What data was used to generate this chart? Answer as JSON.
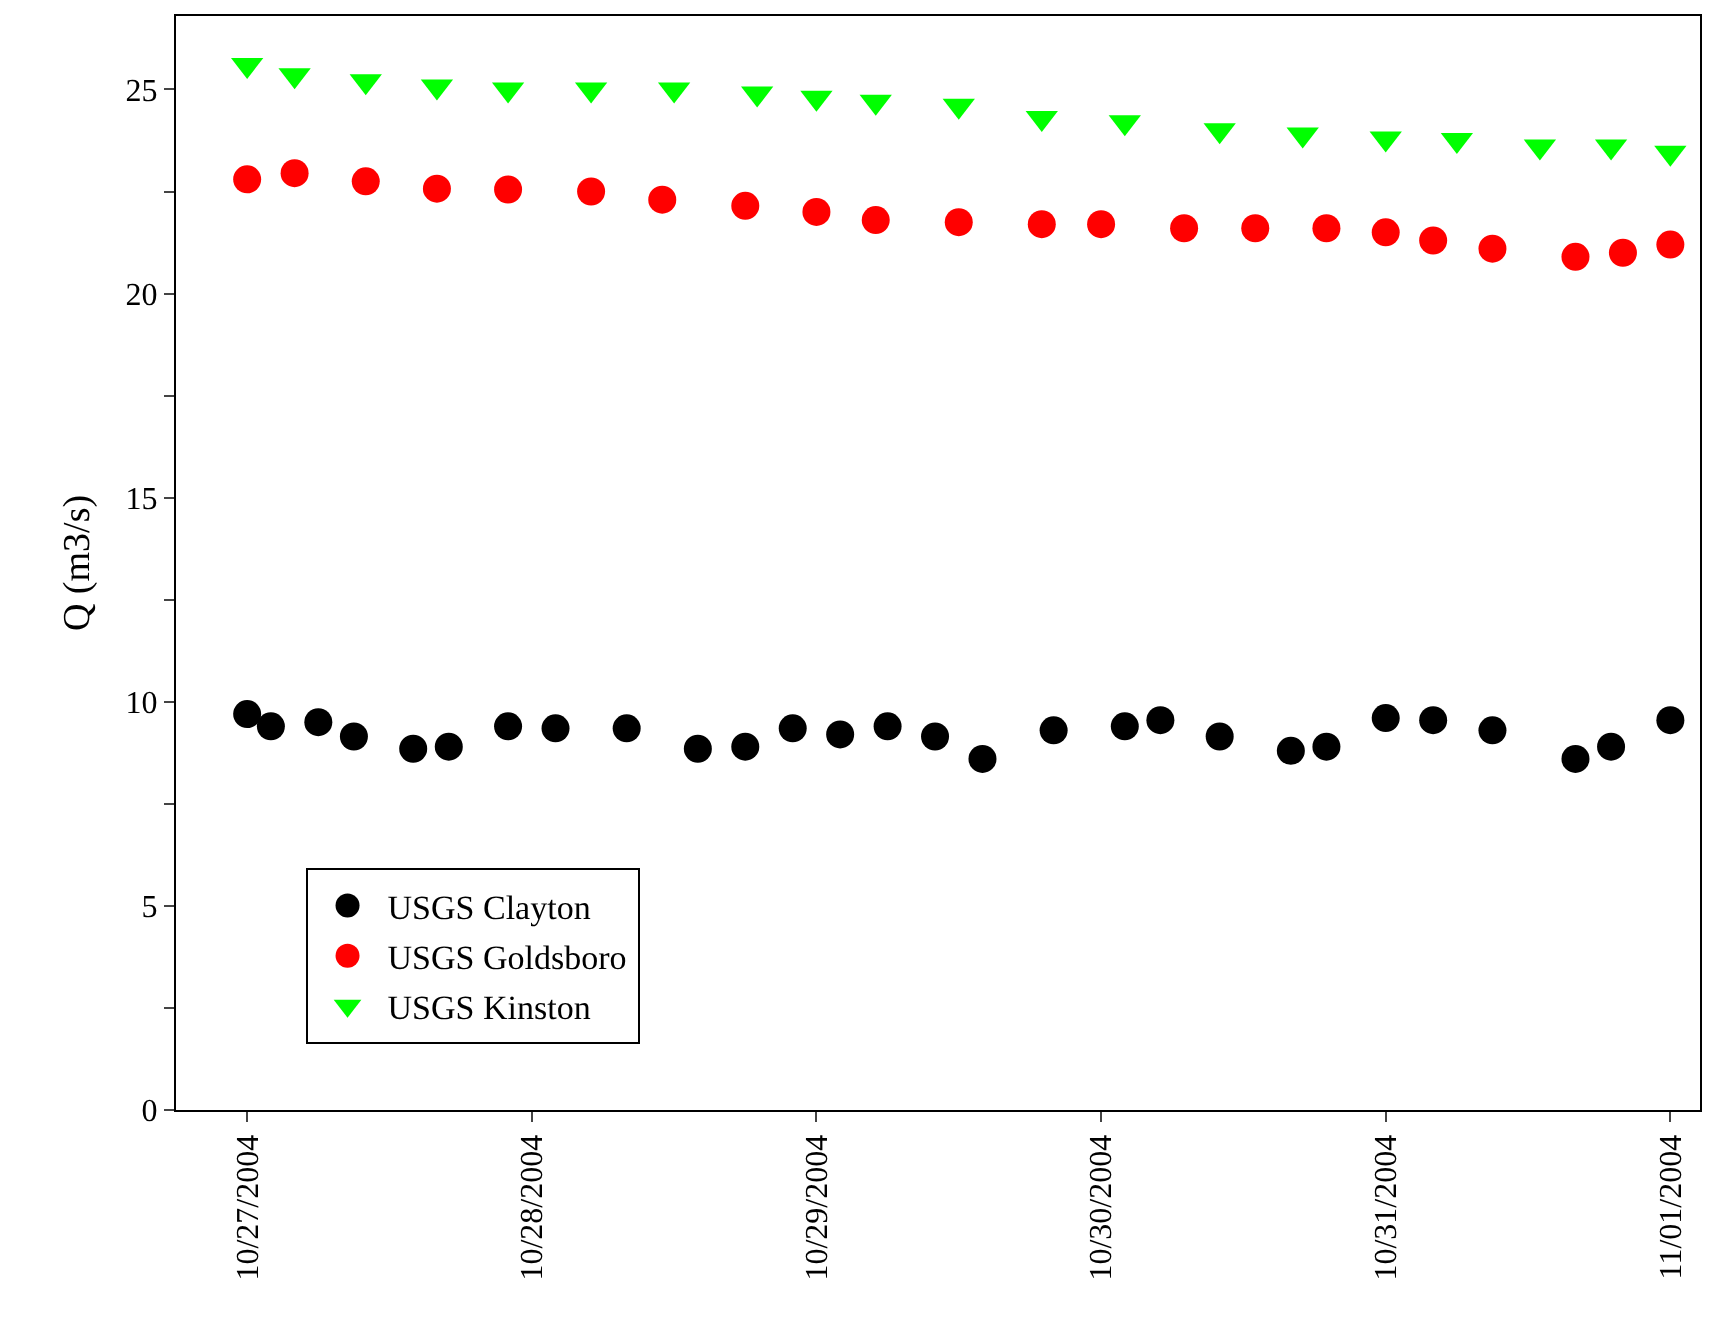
{
  "chart_data": {
    "type": "scatter",
    "ylabel": "Q (m3/s)",
    "xlim": [
      "2004-10-26T18:00",
      "2004-11-01T02:30"
    ],
    "xticks": [
      {
        "value": "2004-10-27",
        "label": "10/27/2004"
      },
      {
        "value": "2004-10-28",
        "label": "10/28/2004"
      },
      {
        "value": "2004-10-29",
        "label": "10/29/2004"
      },
      {
        "value": "2004-10-30",
        "label": "10/30/2004"
      },
      {
        "value": "2004-10-31",
        "label": "10/31/2004"
      },
      {
        "value": "2004-11-01",
        "label": "11/01/2004"
      }
    ],
    "ylim": [
      0,
      26.8
    ],
    "yticks": [
      0,
      {
        "value": 2.5,
        "label": null
      },
      5,
      {
        "value": 7.5,
        "label": null
      },
      10,
      {
        "value": 12.5,
        "label": null
      },
      15,
      {
        "value": 17.5,
        "label": null
      },
      20,
      {
        "value": 22.5,
        "label": null
      },
      25
    ],
    "legend": "bottom left",
    "series": [
      {
        "name": "USGS Clayton",
        "color": "#000000",
        "marker": "circle",
        "x": [
          "2004-10-27T00:00",
          "2004-10-27T02:00",
          "2004-10-27T06:00",
          "2004-10-27T09:00",
          "2004-10-27T14:00",
          "2004-10-27T17:00",
          "2004-10-27T22:00",
          "2004-10-28T02:00",
          "2004-10-28T08:00",
          "2004-10-28T14:00",
          "2004-10-28T18:00",
          "2004-10-28T22:00",
          "2004-10-29T02:00",
          "2004-10-29T06:00",
          "2004-10-29T10:00",
          "2004-10-29T14:00",
          "2004-10-29T20:00",
          "2004-10-30T02:00",
          "2004-10-30T05:00",
          "2004-10-30T10:00",
          "2004-10-30T16:00",
          "2004-10-30T19:00",
          "2004-10-31T00:00",
          "2004-10-31T04:00",
          "2004-10-31T09:00",
          "2004-10-31T16:00",
          "2004-10-31T19:00",
          "2004-11-01T00:00"
        ],
        "values": [
          9.7,
          9.4,
          9.5,
          9.15,
          8.85,
          8.9,
          9.4,
          9.35,
          9.35,
          8.85,
          8.9,
          9.35,
          9.2,
          9.4,
          9.15,
          8.6,
          9.3,
          9.4,
          9.55,
          9.15,
          8.8,
          8.9,
          9.6,
          9.55,
          9.3,
          8.6,
          8.9,
          9.55
        ]
      },
      {
        "name": "USGS Goldsboro",
        "color": "#ff0000",
        "marker": "circle",
        "x": [
          "2004-10-27T00:00",
          "2004-10-27T04:00",
          "2004-10-27T10:00",
          "2004-10-27T16:00",
          "2004-10-27T22:00",
          "2004-10-28T05:00",
          "2004-10-28T11:00",
          "2004-10-28T18:00",
          "2004-10-29T00:00",
          "2004-10-29T05:00",
          "2004-10-29T12:00",
          "2004-10-29T19:00",
          "2004-10-30T00:00",
          "2004-10-30T07:00",
          "2004-10-30T13:00",
          "2004-10-30T19:00",
          "2004-10-31T00:00",
          "2004-10-31T04:00",
          "2004-10-31T09:00",
          "2004-10-31T16:00",
          "2004-10-31T20:00",
          "2004-11-01T00:00"
        ],
        "values": [
          22.8,
          22.95,
          22.75,
          22.57,
          22.55,
          22.5,
          22.3,
          22.15,
          22.0,
          21.8,
          21.75,
          21.7,
          21.7,
          21.6,
          21.6,
          21.6,
          21.5,
          21.3,
          21.1,
          20.9,
          21.0,
          21.2
        ]
      },
      {
        "name": "USGS Kinston",
        "color": "#00ff00",
        "marker": "triangle",
        "x": [
          "2004-10-27T00:00",
          "2004-10-27T04:00",
          "2004-10-27T10:00",
          "2004-10-27T16:00",
          "2004-10-27T22:00",
          "2004-10-28T05:00",
          "2004-10-28T12:00",
          "2004-10-28T19:00",
          "2004-10-29T00:00",
          "2004-10-29T05:00",
          "2004-10-29T12:00",
          "2004-10-29T19:00",
          "2004-10-30T02:00",
          "2004-10-30T10:00",
          "2004-10-30T17:00",
          "2004-10-31T00:00",
          "2004-10-31T06:00",
          "2004-10-31T13:00",
          "2004-10-31T19:00",
          "2004-11-01T00:00"
        ],
        "values": [
          25.6,
          25.35,
          25.2,
          25.07,
          25.0,
          25.0,
          25.0,
          24.9,
          24.8,
          24.7,
          24.6,
          24.3,
          24.2,
          24.0,
          23.9,
          23.8,
          23.76,
          23.6,
          23.6,
          23.45
        ]
      }
    ]
  }
}
